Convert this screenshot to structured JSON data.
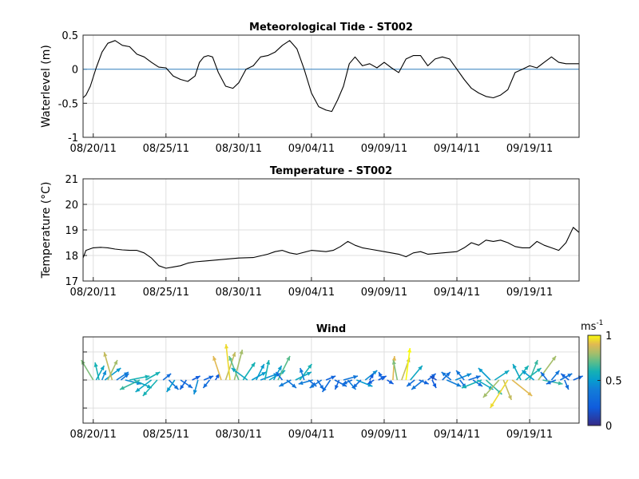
{
  "chart_data": [
    {
      "type": "line",
      "title": "Meteorological Tide - ST002",
      "ylabel": "Waterlevel (m)",
      "xlabel": "",
      "x_ticks": [
        "08/20/11",
        "08/25/11",
        "08/30/11",
        "09/04/11",
        "09/09/11",
        "09/14/11",
        "09/19/11"
      ],
      "x_range_days": [
        -0.7,
        33.4
      ],
      "ylim": [
        -1,
        0.5
      ],
      "y_ticks": [
        "-1",
        "-0.5",
        "0",
        "0.5"
      ],
      "grid": true,
      "reference_line": {
        "y": 0,
        "color": "#4a90c8"
      },
      "series": [
        {
          "color": "#000000",
          "x": [
            -0.7,
            -0.5,
            -0.2,
            0.2,
            0.6,
            1.0,
            1.5,
            2.0,
            2.5,
            3.0,
            3.5,
            4.0,
            4.5,
            5.0,
            5.5,
            6.0,
            6.5,
            7.0,
            7.3,
            7.6,
            7.9,
            8.2,
            8.6,
            9.1,
            9.6,
            10.0,
            10.5,
            11.0,
            11.5,
            12.0,
            12.5,
            13.0,
            13.5,
            14.0,
            14.5,
            15.0,
            15.5,
            16.0,
            16.4,
            16.8,
            17.2,
            17.6,
            18.0,
            18.5,
            19.0,
            19.5,
            20.0,
            20.5,
            21.0,
            21.5,
            22.0,
            22.5,
            23.0,
            23.5,
            24.0,
            24.5,
            25.0,
            25.5,
            26.0,
            26.5,
            27.0,
            27.5,
            28.0,
            28.5,
            29.0,
            29.5,
            30.0,
            30.5,
            31.0,
            31.5,
            32.0,
            32.5,
            33.0,
            33.4
          ],
          "y": [
            -0.42,
            -0.38,
            -0.25,
            0.02,
            0.25,
            0.38,
            0.42,
            0.35,
            0.33,
            0.22,
            0.18,
            0.1,
            0.03,
            0.02,
            -0.1,
            -0.15,
            -0.18,
            -0.1,
            0.1,
            0.18,
            0.2,
            0.18,
            -0.05,
            -0.25,
            -0.28,
            -0.2,
            0.0,
            0.05,
            0.18,
            0.2,
            0.25,
            0.35,
            0.42,
            0.3,
            0.0,
            -0.35,
            -0.55,
            -0.6,
            -0.62,
            -0.45,
            -0.25,
            0.08,
            0.18,
            0.05,
            0.08,
            0.02,
            0.1,
            0.02,
            -0.05,
            0.15,
            0.2,
            0.2,
            0.05,
            0.15,
            0.18,
            0.15,
            0.0,
            -0.15,
            -0.28,
            -0.35,
            -0.4,
            -0.42,
            -0.38,
            -0.3,
            -0.05,
            0.0,
            0.05,
            0.02,
            0.1,
            0.18,
            0.1,
            0.08,
            0.08,
            0.08
          ]
        }
      ]
    },
    {
      "type": "line",
      "title": "Temperature - ST002",
      "ylabel": "Temperature (°C)",
      "xlabel": "",
      "x_ticks": [
        "08/20/11",
        "08/25/11",
        "08/30/11",
        "09/04/11",
        "09/09/11",
        "09/14/11",
        "09/19/11"
      ],
      "x_range_days": [
        -0.7,
        33.4
      ],
      "ylim": [
        17,
        21
      ],
      "y_ticks": [
        "17",
        "18",
        "19",
        "20",
        "21"
      ],
      "grid": true,
      "series": [
        {
          "color": "#000000",
          "x": [
            -0.7,
            -0.5,
            0.0,
            0.5,
            1.0,
            1.5,
            2.0,
            2.5,
            3.0,
            3.5,
            4.0,
            4.5,
            5.0,
            5.5,
            6.0,
            6.5,
            7.0,
            8.0,
            9.0,
            10.0,
            11.0,
            12.0,
            12.5,
            13.0,
            13.5,
            14.0,
            15.0,
            16.0,
            16.5,
            17.0,
            17.5,
            18.0,
            18.5,
            19.0,
            20.0,
            21.0,
            21.5,
            22.0,
            22.5,
            23.0,
            24.0,
            25.0,
            25.5,
            26.0,
            26.5,
            27.0,
            27.5,
            28.0,
            28.5,
            29.0,
            29.5,
            30.0,
            30.5,
            31.0,
            31.5,
            32.0,
            32.5,
            33.0,
            33.4
          ],
          "y": [
            17.9,
            18.2,
            18.3,
            18.32,
            18.3,
            18.25,
            18.22,
            18.2,
            18.2,
            18.1,
            17.9,
            17.6,
            17.5,
            17.55,
            17.6,
            17.7,
            17.75,
            17.8,
            17.85,
            17.9,
            17.92,
            18.05,
            18.15,
            18.2,
            18.1,
            18.05,
            18.2,
            18.15,
            18.2,
            18.35,
            18.55,
            18.4,
            18.3,
            18.25,
            18.15,
            18.05,
            17.95,
            18.1,
            18.15,
            18.05,
            18.1,
            18.15,
            18.3,
            18.5,
            18.4,
            18.6,
            18.55,
            18.6,
            18.5,
            18.35,
            18.3,
            18.3,
            18.55,
            18.4,
            18.3,
            18.2,
            18.5,
            19.1,
            18.9
          ]
        }
      ]
    },
    {
      "type": "quiver",
      "title": "Wind",
      "xlabel": "",
      "ylabel": "",
      "x_ticks": [
        "08/20/11",
        "08/25/11",
        "08/30/11",
        "09/04/11",
        "09/09/11",
        "09/14/11",
        "09/19/11"
      ],
      "x_range_days": [
        -0.7,
        33.4
      ],
      "ylim": [
        -1,
        1
      ],
      "colorbar": {
        "label": "ms-1",
        "label_base": "ms",
        "label_exponent": "-1",
        "range": [
          0,
          1
        ],
        "ticks": [
          "0",
          "0.5",
          "1"
        ],
        "colormap": "parula"
      },
      "vectors": [
        {
          "t": 0.0,
          "u": -0.15,
          "v": 0.25,
          "s": 0.75
        },
        {
          "t": 0.2,
          "u": 0.1,
          "v": 0.18,
          "s": 0.55
        },
        {
          "t": 0.4,
          "u": -0.05,
          "v": 0.22,
          "s": 0.6
        },
        {
          "t": 0.6,
          "u": 0.05,
          "v": 0.12,
          "s": 0.45
        },
        {
          "t": 0.8,
          "u": 0.2,
          "v": 0.15,
          "s": 0.5
        },
        {
          "t": 1.0,
          "u": 0.12,
          "v": 0.25,
          "s": 0.8
        },
        {
          "t": 1.3,
          "u": -0.1,
          "v": 0.35,
          "s": 0.85
        },
        {
          "t": 1.6,
          "u": 0.15,
          "v": 0.1,
          "s": 0.4
        },
        {
          "t": 1.9,
          "u": 0.1,
          "v": 0.08,
          "s": 0.35
        },
        {
          "t": 2.2,
          "u": 0.2,
          "v": -0.05,
          "s": 0.45
        },
        {
          "t": 2.5,
          "u": 0.25,
          "v": 0.05,
          "s": 0.6
        },
        {
          "t": 2.8,
          "u": 0.22,
          "v": -0.1,
          "s": 0.55
        },
        {
          "t": 3.2,
          "u": -0.25,
          "v": -0.12,
          "s": 0.65
        },
        {
          "t": 3.6,
          "u": 0.18,
          "v": 0.1,
          "s": 0.6
        },
        {
          "t": 4.0,
          "u": -0.2,
          "v": -0.15,
          "s": 0.55
        },
        {
          "t": 4.4,
          "u": -0.18,
          "v": -0.2,
          "s": 0.6
        },
        {
          "t": 4.8,
          "u": 0.1,
          "v": 0.08,
          "s": 0.3
        },
        {
          "t": 5.2,
          "u": 0.12,
          "v": -0.12,
          "s": 0.35
        },
        {
          "t": 5.6,
          "u": -0.1,
          "v": -0.15,
          "s": 0.5
        },
        {
          "t": 6.0,
          "u": 0.15,
          "v": -0.1,
          "s": 0.3
        },
        {
          "t": 6.4,
          "u": -0.08,
          "v": -0.12,
          "s": 0.25
        },
        {
          "t": 6.8,
          "u": 0.1,
          "v": 0.05,
          "s": 0.2
        },
        {
          "t": 7.2,
          "u": -0.05,
          "v": -0.18,
          "s": 0.45
        },
        {
          "t": 7.6,
          "u": 0.12,
          "v": 0.05,
          "s": 0.25
        },
        {
          "t": 8.0,
          "u": -0.08,
          "v": -0.1,
          "s": 0.3
        },
        {
          "t": 8.4,
          "u": 0.05,
          "v": 0.08,
          "s": 0.2
        },
        {
          "t": 8.8,
          "u": -0.1,
          "v": 0.3,
          "s": 0.9
        },
        {
          "t": 9.1,
          "u": 0.12,
          "v": 0.35,
          "s": 0.85
        },
        {
          "t": 9.4,
          "u": -0.05,
          "v": 0.45,
          "s": 0.95
        },
        {
          "t": 9.7,
          "u": 0.1,
          "v": 0.38,
          "s": 0.8
        },
        {
          "t": 10.0,
          "u": -0.12,
          "v": 0.3,
          "s": 0.7
        },
        {
          "t": 10.3,
          "u": 0.15,
          "v": 0.22,
          "s": 0.6
        },
        {
          "t": 10.6,
          "u": -0.2,
          "v": 0.15,
          "s": 0.55
        },
        {
          "t": 10.9,
          "u": 0.18,
          "v": 0.1,
          "s": 0.5
        },
        {
          "t": 11.2,
          "u": 0.1,
          "v": 0.2,
          "s": 0.5
        },
        {
          "t": 11.5,
          "u": 0.22,
          "v": 0.08,
          "s": 0.45
        },
        {
          "t": 11.8,
          "u": 0.05,
          "v": 0.25,
          "s": 0.6
        },
        {
          "t": 12.1,
          "u": 0.2,
          "v": 0.12,
          "s": 0.55
        },
        {
          "t": 12.4,
          "u": 0.1,
          "v": 0.18,
          "s": 0.5
        },
        {
          "t": 12.7,
          "u": 0.15,
          "v": 0.3,
          "s": 0.7
        },
        {
          "t": 13.0,
          "u": -0.08,
          "v": 0.1,
          "s": 0.3
        },
        {
          "t": 13.3,
          "u": 0.12,
          "v": -0.1,
          "s": 0.35
        },
        {
          "t": 13.6,
          "u": -0.15,
          "v": -0.08,
          "s": 0.4
        },
        {
          "t": 13.9,
          "u": 0.2,
          "v": 0.1,
          "s": 0.55
        },
        {
          "t": 14.2,
          "u": 0.15,
          "v": 0.2,
          "s": 0.6
        },
        {
          "t": 14.5,
          "u": -0.05,
          "v": 0.15,
          "s": 0.4
        },
        {
          "t": 14.8,
          "u": 0.1,
          "v": -0.08,
          "s": 0.3
        },
        {
          "t": 15.1,
          "u": -0.18,
          "v": -0.05,
          "s": 0.4
        },
        {
          "t": 15.4,
          "u": 0.08,
          "v": -0.12,
          "s": 0.3
        },
        {
          "t": 15.7,
          "u": -0.15,
          "v": -0.1,
          "s": 0.35
        },
        {
          "t": 16.0,
          "u": 0.12,
          "v": 0.05,
          "s": 0.25
        },
        {
          "t": 16.3,
          "u": -0.1,
          "v": -0.15,
          "s": 0.3
        },
        {
          "t": 16.6,
          "u": 0.15,
          "v": -0.08,
          "s": 0.3
        },
        {
          "t": 16.9,
          "u": -0.05,
          "v": -0.12,
          "s": 0.25
        },
        {
          "t": 17.2,
          "u": 0.18,
          "v": 0.05,
          "s": 0.35
        },
        {
          "t": 17.5,
          "u": 0.1,
          "v": -0.12,
          "s": 0.4
        },
        {
          "t": 17.8,
          "u": -0.12,
          "v": -0.05,
          "s": 0.3
        },
        {
          "t": 18.1,
          "u": 0.2,
          "v": -0.08,
          "s": 0.5
        },
        {
          "t": 18.4,
          "u": -0.1,
          "v": -0.1,
          "s": 0.3
        },
        {
          "t": 18.7,
          "u": 0.15,
          "v": 0.12,
          "s": 0.45
        },
        {
          "t": 19.0,
          "u": 0.05,
          "v": 0.08,
          "s": 0.2
        },
        {
          "t": 19.3,
          "u": -0.08,
          "v": -0.05,
          "s": 0.2
        },
        {
          "t": 19.6,
          "u": 0.1,
          "v": 0.05,
          "s": 0.2
        },
        {
          "t": 19.9,
          "u": -0.05,
          "v": 0.1,
          "s": 0.25
        },
        {
          "t": 20.2,
          "u": 0.08,
          "v": -0.05,
          "s": 0.2
        },
        {
          "t": 20.6,
          "u": 0.02,
          "v": 0.3,
          "s": 0.9
        },
        {
          "t": 20.9,
          "u": -0.05,
          "v": 0.25,
          "s": 0.75
        },
        {
          "t": 21.2,
          "u": 0.1,
          "v": 0.28,
          "s": 0.85
        },
        {
          "t": 21.5,
          "u": 0.05,
          "v": 0.4,
          "s": 1.0
        },
        {
          "t": 21.8,
          "u": 0.15,
          "v": 0.18,
          "s": 0.55
        },
        {
          "t": 22.1,
          "u": -0.1,
          "v": -0.08,
          "s": 0.3
        },
        {
          "t": 22.4,
          "u": 0.12,
          "v": -0.05,
          "s": 0.25
        },
        {
          "t": 22.7,
          "u": -0.15,
          "v": -0.12,
          "s": 0.35
        },
        {
          "t": 23.0,
          "u": 0.1,
          "v": 0.08,
          "s": 0.25
        },
        {
          "t": 23.3,
          "u": 0.05,
          "v": -0.1,
          "s": 0.2
        },
        {
          "t": 23.6,
          "u": -0.08,
          "v": 0.05,
          "s": 0.15
        },
        {
          "t": 24.0,
          "u": 0.1,
          "v": 0.1,
          "s": 0.3
        },
        {
          "t": 24.3,
          "u": 0.18,
          "v": -0.08,
          "s": 0.4
        },
        {
          "t": 24.6,
          "u": -0.12,
          "v": 0.1,
          "s": 0.35
        },
        {
          "t": 24.9,
          "u": 0.2,
          "v": 0.08,
          "s": 0.45
        },
        {
          "t": 25.2,
          "u": 0.08,
          "v": -0.1,
          "s": 0.3
        },
        {
          "t": 25.5,
          "u": -0.1,
          "v": 0.12,
          "s": 0.35
        },
        {
          "t": 25.8,
          "u": 0.15,
          "v": 0.05,
          "s": 0.3
        },
        {
          "t": 26.1,
          "u": 0.12,
          "v": -0.08,
          "s": 0.3
        },
        {
          "t": 26.4,
          "u": 0.2,
          "v": -0.12,
          "s": 0.55
        },
        {
          "t": 26.7,
          "u": -0.25,
          "v": -0.1,
          "s": 0.6
        },
        {
          "t": 27.0,
          "u": 0.2,
          "v": -0.18,
          "s": 0.65
        },
        {
          "t": 27.3,
          "u": -0.15,
          "v": 0.15,
          "s": 0.5
        },
        {
          "t": 27.6,
          "u": 0.18,
          "v": 0.12,
          "s": 0.55
        },
        {
          "t": 27.9,
          "u": -0.2,
          "v": -0.22,
          "s": 0.8
        },
        {
          "t": 28.2,
          "u": 0.1,
          "v": -0.25,
          "s": 0.85
        },
        {
          "t": 28.5,
          "u": -0.22,
          "v": -0.35,
          "s": 0.95
        },
        {
          "t": 28.8,
          "u": 0.25,
          "v": -0.2,
          "s": 0.9
        },
        {
          "t": 29.1,
          "u": 0.15,
          "v": 0.18,
          "s": 0.6
        },
        {
          "t": 29.4,
          "u": -0.1,
          "v": 0.2,
          "s": 0.55
        },
        {
          "t": 29.7,
          "u": 0.2,
          "v": 0.15,
          "s": 0.6
        },
        {
          "t": 30.0,
          "u": 0.1,
          "v": 0.25,
          "s": 0.65
        },
        {
          "t": 30.3,
          "u": -0.15,
          "v": 0.12,
          "s": 0.5
        },
        {
          "t": 30.6,
          "u": 0.22,
          "v": 0.3,
          "s": 0.8
        },
        {
          "t": 30.9,
          "u": 0.25,
          "v": -0.05,
          "s": 0.65
        },
        {
          "t": 31.2,
          "u": -0.08,
          "v": 0.1,
          "s": 0.3
        },
        {
          "t": 31.5,
          "u": 0.1,
          "v": 0.12,
          "s": 0.35
        },
        {
          "t": 31.8,
          "u": -0.12,
          "v": -0.05,
          "s": 0.3
        },
        {
          "t": 32.1,
          "u": 0.15,
          "v": 0.08,
          "s": 0.35
        },
        {
          "t": 32.4,
          "u": 0.05,
          "v": -0.12,
          "s": 0.3
        },
        {
          "t": 32.7,
          "u": -0.1,
          "v": 0.08,
          "s": 0.25
        },
        {
          "t": 33.0,
          "u": 0.12,
          "v": 0.05,
          "s": 0.25
        }
      ]
    }
  ]
}
